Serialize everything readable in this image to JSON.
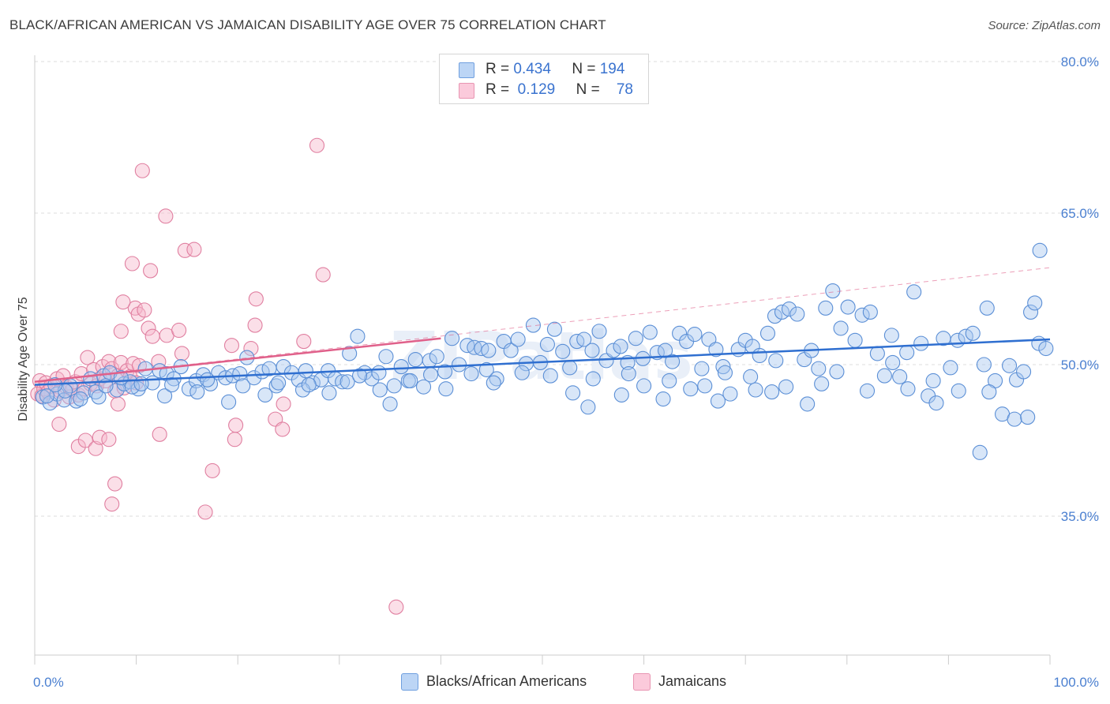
{
  "title": "BLACK/AFRICAN AMERICAN VS JAMAICAN DISABILITY AGE OVER 75 CORRELATION CHART",
  "source": "Source: ZipAtlas.com",
  "legend": {
    "rows": [
      {
        "r_label": "R =",
        "r_value": "0.434",
        "n_label": "N =",
        "n_value": "194"
      },
      {
        "r_label": "R =",
        "r_value": "0.129",
        "n_label": "N =",
        "n_value": "78"
      }
    ],
    "series": [
      "Blacks/African Americans",
      "Jamaicans"
    ]
  },
  "colors": {
    "blue_fill": "#a8c8f0",
    "blue_stroke": "#5b8fd6",
    "blue_line": "#2f6fd0",
    "pink_fill": "#f7b8cb",
    "pink_stroke": "#e07fa0",
    "pink_line": "#e0608a",
    "axis_label": "#4a7fd0",
    "grid": "#dddddd"
  },
  "chart_data": {
    "type": "scatter",
    "title": "BLACK/AFRICAN AMERICAN VS JAMAICAN DISABILITY AGE OVER 75 CORRELATION CHART",
    "xlabel": "",
    "ylabel": "Disability Age Over 75",
    "xlim": [
      0,
      100
    ],
    "ylim": [
      20,
      85
    ],
    "x_tick_labels": [
      "0.0%",
      "100.0%"
    ],
    "y_ticks": [
      35,
      50,
      65,
      80
    ],
    "y_tick_labels": [
      "35.0%",
      "50.0%",
      "65.0%",
      "80.0%"
    ],
    "grid": true,
    "legend_placement": "top-center",
    "watermark": "ZIPatlas",
    "series": [
      {
        "name": "Blacks/African Americans",
        "r": 0.434,
        "n": 194,
        "trend": {
          "x": [
            0,
            100
          ],
          "y": [
            48.0,
            52.5
          ]
        },
        "points": [
          [
            0.8,
            46.8
          ],
          [
            1.5,
            46.2
          ],
          [
            2.2,
            47.1
          ],
          [
            2.9,
            46.5
          ],
          [
            3.5,
            47.9
          ],
          [
            4.1,
            46.4
          ],
          [
            4.8,
            47.2
          ],
          [
            5.5,
            48.6
          ],
          [
            6.0,
            47.3
          ],
          [
            6.8,
            48.9
          ],
          [
            7.4,
            49.2
          ],
          [
            8.1,
            47.5
          ],
          [
            8.8,
            48.1
          ],
          [
            9.4,
            48.3
          ],
          [
            10.2,
            47.6
          ],
          [
            10.9,
            49.6
          ],
          [
            11.6,
            48.2
          ],
          [
            12.3,
            49.4
          ],
          [
            13.0,
            49.1
          ],
          [
            13.7,
            48.6
          ],
          [
            14.4,
            49.8
          ],
          [
            15.2,
            47.6
          ],
          [
            15.9,
            48.4
          ],
          [
            16.6,
            49.0
          ],
          [
            17.3,
            48.1
          ],
          [
            18.1,
            49.2
          ],
          [
            18.8,
            48.7
          ],
          [
            19.5,
            48.9
          ],
          [
            20.2,
            49.1
          ],
          [
            20.9,
            50.7
          ],
          [
            21.6,
            48.7
          ],
          [
            22.4,
            49.3
          ],
          [
            23.1,
            49.6
          ],
          [
            23.8,
            47.9
          ],
          [
            24.5,
            49.8
          ],
          [
            25.3,
            49.2
          ],
          [
            26.0,
            48.5
          ],
          [
            26.7,
            49.4
          ],
          [
            27.4,
            48.2
          ],
          [
            28.2,
            48.5
          ],
          [
            28.9,
            49.4
          ],
          [
            29.6,
            48.6
          ],
          [
            30.3,
            48.3
          ],
          [
            31.0,
            51.1
          ],
          [
            31.8,
            52.8
          ],
          [
            32.5,
            49.2
          ],
          [
            33.2,
            48.6
          ],
          [
            33.9,
            49.2
          ],
          [
            34.6,
            50.8
          ],
          [
            35.4,
            47.9
          ],
          [
            36.1,
            49.8
          ],
          [
            36.8,
            48.4
          ],
          [
            37.5,
            50.5
          ],
          [
            38.3,
            47.8
          ],
          [
            38.9,
            50.4
          ],
          [
            39.6,
            50.8
          ],
          [
            40.4,
            49.3
          ],
          [
            41.1,
            52.6
          ],
          [
            41.8,
            50.0
          ],
          [
            42.6,
            51.9
          ],
          [
            43.3,
            51.7
          ],
          [
            44.0,
            51.6
          ],
          [
            44.7,
            51.4
          ],
          [
            45.5,
            48.6
          ],
          [
            46.2,
            52.3
          ],
          [
            46.9,
            51.4
          ],
          [
            47.6,
            52.5
          ],
          [
            48.4,
            50.1
          ],
          [
            49.1,
            53.9
          ],
          [
            49.8,
            50.2
          ],
          [
            50.5,
            52.0
          ],
          [
            51.2,
            53.5
          ],
          [
            52.0,
            51.3
          ],
          [
            52.7,
            49.7
          ],
          [
            53.4,
            52.3
          ],
          [
            54.1,
            52.5
          ],
          [
            54.9,
            51.4
          ],
          [
            55.6,
            53.3
          ],
          [
            56.3,
            50.4
          ],
          [
            57.0,
            51.4
          ],
          [
            57.7,
            51.8
          ],
          [
            58.4,
            50.2
          ],
          [
            59.2,
            52.6
          ],
          [
            59.9,
            50.6
          ],
          [
            60.6,
            53.2
          ],
          [
            61.3,
            51.2
          ],
          [
            62.1,
            51.4
          ],
          [
            62.8,
            50.3
          ],
          [
            63.5,
            53.1
          ],
          [
            64.2,
            52.3
          ],
          [
            65.0,
            53.0
          ],
          [
            65.7,
            49.6
          ],
          [
            66.4,
            52.5
          ],
          [
            67.1,
            51.5
          ],
          [
            67.8,
            49.8
          ],
          [
            68.5,
            47.1
          ],
          [
            69.3,
            51.5
          ],
          [
            70.0,
            52.4
          ],
          [
            70.7,
            51.8
          ],
          [
            71.4,
            50.9
          ],
          [
            72.2,
            53.1
          ],
          [
            72.9,
            54.8
          ],
          [
            73.6,
            55.2
          ],
          [
            74.3,
            55.5
          ],
          [
            75.1,
            55.0
          ],
          [
            75.8,
            50.5
          ],
          [
            76.5,
            51.4
          ],
          [
            77.2,
            49.6
          ],
          [
            77.9,
            55.6
          ],
          [
            78.6,
            57.3
          ],
          [
            79.4,
            53.6
          ],
          [
            80.1,
            55.7
          ],
          [
            80.8,
            52.4
          ],
          [
            81.5,
            54.9
          ],
          [
            82.3,
            55.2
          ],
          [
            83.0,
            51.1
          ],
          [
            83.7,
            48.9
          ],
          [
            84.4,
            52.9
          ],
          [
            85.2,
            48.8
          ],
          [
            85.9,
            51.2
          ],
          [
            86.6,
            57.2
          ],
          [
            87.3,
            52.1
          ],
          [
            88.0,
            46.9
          ],
          [
            88.8,
            46.2
          ],
          [
            89.5,
            52.6
          ],
          [
            90.2,
            49.7
          ],
          [
            90.9,
            52.4
          ],
          [
            91.7,
            52.8
          ],
          [
            92.4,
            53.1
          ],
          [
            93.1,
            41.3
          ],
          [
            93.8,
            55.6
          ],
          [
            94.6,
            48.4
          ],
          [
            95.3,
            45.1
          ],
          [
            96.0,
            49.9
          ],
          [
            96.7,
            48.5
          ],
          [
            97.4,
            49.3
          ],
          [
            98.1,
            55.2
          ],
          [
            98.9,
            52.1
          ],
          [
            99.6,
            51.6
          ],
          [
            57.8,
            47.0
          ],
          [
            61.9,
            46.6
          ],
          [
            67.3,
            46.4
          ],
          [
            72.6,
            47.3
          ],
          [
            76.1,
            46.1
          ],
          [
            54.5,
            45.8
          ],
          [
            45.2,
            48.2
          ],
          [
            40.5,
            47.6
          ],
          [
            35.0,
            46.1
          ],
          [
            30.8,
            48.3
          ],
          [
            26.4,
            47.5
          ],
          [
            22.7,
            47.0
          ],
          [
            19.1,
            46.3
          ],
          [
            16.0,
            47.3
          ],
          [
            12.8,
            46.9
          ],
          [
            9.6,
            47.8
          ],
          [
            6.3,
            46.8
          ],
          [
            3.0,
            47.4
          ],
          [
            1.2,
            46.9
          ],
          [
            2.0,
            48.0
          ],
          [
            4.5,
            46.6
          ],
          [
            7.0,
            47.9
          ],
          [
            8.5,
            48.7
          ],
          [
            10.5,
            48.1
          ],
          [
            13.5,
            48.0
          ],
          [
            17.0,
            48.5
          ],
          [
            20.5,
            47.9
          ],
          [
            24.0,
            48.2
          ],
          [
            27.0,
            48.0
          ],
          [
            29.0,
            47.2
          ],
          [
            32.0,
            48.9
          ],
          [
            34.0,
            47.5
          ],
          [
            37.0,
            48.4
          ],
          [
            39.0,
            49.0
          ],
          [
            43.0,
            49.1
          ],
          [
            44.5,
            49.5
          ],
          [
            48.0,
            49.2
          ],
          [
            50.8,
            48.9
          ],
          [
            53.0,
            47.2
          ],
          [
            55.0,
            48.6
          ],
          [
            58.5,
            49.1
          ],
          [
            60.0,
            47.9
          ],
          [
            62.5,
            48.4
          ],
          [
            64.6,
            47.6
          ],
          [
            66.0,
            47.9
          ],
          [
            68.0,
            49.2
          ],
          [
            70.5,
            48.8
          ],
          [
            74.0,
            47.8
          ],
          [
            77.5,
            48.1
          ],
          [
            82.0,
            47.4
          ],
          [
            86.0,
            47.6
          ],
          [
            88.5,
            48.4
          ],
          [
            91.0,
            47.4
          ],
          [
            94.0,
            47.3
          ],
          [
            96.5,
            44.6
          ],
          [
            98.5,
            56.1
          ],
          [
            99.0,
            61.3
          ],
          [
            97.8,
            44.8
          ],
          [
            93.5,
            50.0
          ],
          [
            84.5,
            50.2
          ],
          [
            79.0,
            49.3
          ],
          [
            73.0,
            50.4
          ],
          [
            71.0,
            47.5
          ]
        ]
      },
      {
        "name": "Jamaicans",
        "r": 0.129,
        "n": 78,
        "trend": {
          "x": [
            0,
            40
          ],
          "y": [
            48.3,
            52.6
          ]
        },
        "trend_extended": {
          "x": [
            0,
            100
          ],
          "y": [
            48.3,
            59.6
          ]
        },
        "points": [
          [
            0.3,
            47.1
          ],
          [
            0.5,
            48.4
          ],
          [
            0.7,
            46.9
          ],
          [
            0.9,
            47.6
          ],
          [
            1.1,
            48.2
          ],
          [
            1.3,
            47.3
          ],
          [
            1.6,
            47.9
          ],
          [
            1.9,
            46.5
          ],
          [
            2.2,
            48.6
          ],
          [
            2.5,
            47.4
          ],
          [
            2.8,
            48.9
          ],
          [
            3.1,
            47.8
          ],
          [
            3.4,
            46.8
          ],
          [
            3.7,
            47.5
          ],
          [
            4.0,
            48.3
          ],
          [
            4.3,
            47.0
          ],
          [
            4.6,
            49.1
          ],
          [
            4.9,
            47.6
          ],
          [
            5.2,
            50.7
          ],
          [
            5.5,
            48.1
          ],
          [
            5.8,
            49.5
          ],
          [
            6.1,
            47.9
          ],
          [
            6.4,
            48.6
          ],
          [
            6.7,
            49.8
          ],
          [
            7.0,
            48.4
          ],
          [
            7.3,
            50.3
          ],
          [
            7.6,
            49.6
          ],
          [
            7.9,
            47.4
          ],
          [
            8.2,
            48.9
          ],
          [
            8.5,
            50.2
          ],
          [
            8.8,
            47.7
          ],
          [
            9.1,
            49.4
          ],
          [
            9.4,
            48.8
          ],
          [
            9.7,
            50.1
          ],
          [
            10.0,
            48.2
          ],
          [
            10.3,
            49.9
          ],
          [
            2.4,
            44.1
          ],
          [
            4.3,
            41.9
          ],
          [
            5.0,
            42.5
          ],
          [
            6.0,
            41.7
          ],
          [
            6.4,
            42.8
          ],
          [
            7.3,
            42.6
          ],
          [
            7.9,
            38.2
          ],
          [
            8.2,
            46.1
          ],
          [
            7.6,
            36.2
          ],
          [
            8.5,
            53.3
          ],
          [
            9.6,
            60.0
          ],
          [
            9.9,
            55.6
          ],
          [
            10.2,
            55.0
          ],
          [
            10.8,
            55.4
          ],
          [
            11.2,
            53.6
          ],
          [
            11.6,
            52.8
          ],
          [
            12.2,
            50.3
          ],
          [
            13.0,
            52.9
          ],
          [
            14.2,
            53.4
          ],
          [
            14.5,
            51.1
          ],
          [
            10.6,
            69.2
          ],
          [
            12.9,
            64.7
          ],
          [
            14.8,
            61.3
          ],
          [
            15.7,
            61.4
          ],
          [
            11.4,
            59.3
          ],
          [
            8.7,
            56.2
          ],
          [
            21.8,
            56.5
          ],
          [
            19.4,
            51.9
          ],
          [
            21.3,
            51.6
          ],
          [
            21.7,
            53.9
          ],
          [
            19.7,
            42.6
          ],
          [
            17.5,
            39.5
          ],
          [
            16.8,
            35.4
          ],
          [
            26.5,
            52.3
          ],
          [
            27.8,
            71.7
          ],
          [
            28.4,
            58.9
          ],
          [
            23.7,
            44.6
          ],
          [
            24.4,
            43.6
          ],
          [
            24.5,
            46.1
          ],
          [
            19.8,
            44.0
          ],
          [
            12.3,
            43.1
          ],
          [
            35.6,
            26.0
          ]
        ]
      }
    ]
  },
  "watermark": "ZIPatlas"
}
